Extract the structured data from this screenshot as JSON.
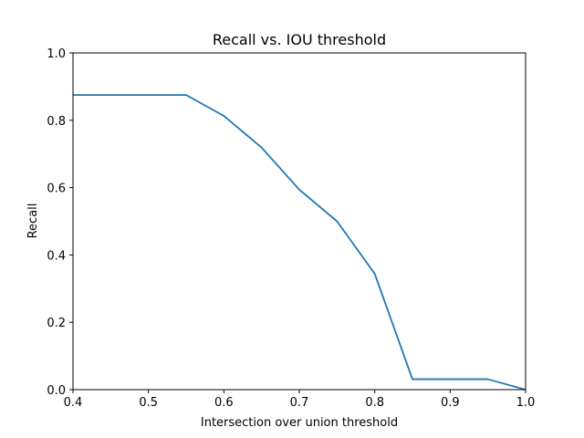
{
  "chart_data": {
    "type": "line",
    "title": "Recall vs. IOU threshold",
    "xlabel": "Intersection over union threshold",
    "ylabel": "Recall",
    "xlim": [
      0.4,
      1.0
    ],
    "ylim": [
      0.0,
      1.0
    ],
    "xticks": [
      0.4,
      0.5,
      0.6,
      0.7,
      0.8,
      0.9,
      1.0
    ],
    "xtick_labels": [
      "0.4",
      "0.5",
      "0.6",
      "0.7",
      "0.8",
      "0.9",
      "1.0"
    ],
    "yticks": [
      0.0,
      0.2,
      0.4,
      0.6,
      0.8,
      1.0
    ],
    "ytick_labels": [
      "0.0",
      "0.2",
      "0.4",
      "0.6",
      "0.8",
      "1.0"
    ],
    "grid": false,
    "series": [
      {
        "color": "#1f77b4",
        "x": [
          0.4,
          0.45,
          0.5,
          0.55,
          0.6,
          0.65,
          0.7,
          0.75,
          0.8,
          0.85,
          0.9,
          0.95,
          1.0
        ],
        "y": [
          0.875,
          0.875,
          0.875,
          0.875,
          0.813,
          0.719,
          0.594,
          0.5,
          0.344,
          0.031,
          0.031,
          0.031,
          0.0
        ]
      }
    ]
  }
}
